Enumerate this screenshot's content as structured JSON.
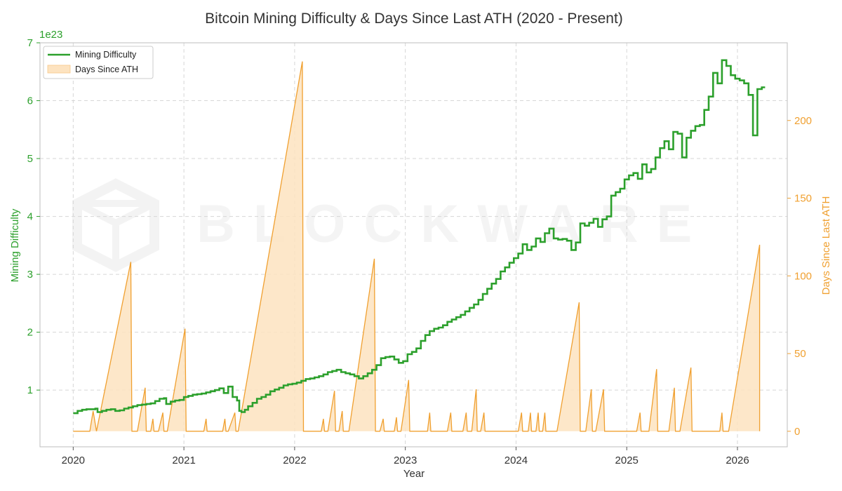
{
  "chart_data": {
    "type": "line",
    "title": "Bitcoin Mining Difficulty & Days Since Last ATH (2020 - Present)",
    "xlabel": "Year",
    "ylabel_left": "Mining Difficulty",
    "ylabel_right": "Days Since Last ATH",
    "left_axis_offset": "1e23",
    "watermark": "BLOCKWARE",
    "xlim": [
      2019.7,
      2026.45
    ],
    "ylim_left": [
      0.02,
      7.0
    ],
    "ylim_right": [
      -10,
      250
    ],
    "x_ticks": [
      2020,
      2021,
      2022,
      2023,
      2024,
      2025,
      2026
    ],
    "y_left_ticks": [
      1,
      2,
      3,
      4,
      5,
      6,
      7
    ],
    "y_right_ticks": [
      0,
      50,
      100,
      150,
      200
    ],
    "grid": true,
    "legend_position": "top-left",
    "colors": {
      "difficulty": "#2ca02c",
      "ath_line": "#f0a030",
      "ath_fill": "#fde3c0",
      "left_axis": "#2ca02c",
      "right_axis": "#f0a030"
    },
    "series": [
      {
        "name": "Mining Difficulty",
        "style": "step",
        "points": [
          [
            2020.0,
            0.6
          ],
          [
            2020.04,
            0.64
          ],
          [
            2020.08,
            0.66
          ],
          [
            2020.12,
            0.67
          ],
          [
            2020.16,
            0.67
          ],
          [
            2020.2,
            0.68
          ],
          [
            2020.22,
            0.62
          ],
          [
            2020.26,
            0.64
          ],
          [
            2020.3,
            0.66
          ],
          [
            2020.34,
            0.67
          ],
          [
            2020.38,
            0.64
          ],
          [
            2020.42,
            0.65
          ],
          [
            2020.46,
            0.68
          ],
          [
            2020.5,
            0.7
          ],
          [
            2020.54,
            0.72
          ],
          [
            2020.58,
            0.74
          ],
          [
            2020.62,
            0.75
          ],
          [
            2020.66,
            0.76
          ],
          [
            2020.7,
            0.77
          ],
          [
            2020.74,
            0.81
          ],
          [
            2020.78,
            0.85
          ],
          [
            2020.82,
            0.86
          ],
          [
            2020.84,
            0.76
          ],
          [
            2020.88,
            0.8
          ],
          [
            2020.92,
            0.82
          ],
          [
            2020.96,
            0.83
          ],
          [
            2021.0,
            0.88
          ],
          [
            2021.04,
            0.9
          ],
          [
            2021.08,
            0.92
          ],
          [
            2021.12,
            0.93
          ],
          [
            2021.16,
            0.94
          ],
          [
            2021.2,
            0.96
          ],
          [
            2021.24,
            0.98
          ],
          [
            2021.28,
            1.0
          ],
          [
            2021.32,
            1.03
          ],
          [
            2021.36,
            0.95
          ],
          [
            2021.4,
            1.06
          ],
          [
            2021.44,
            0.88
          ],
          [
            2021.48,
            0.82
          ],
          [
            2021.5,
            0.64
          ],
          [
            2021.52,
            0.62
          ],
          [
            2021.55,
            0.66
          ],
          [
            2021.58,
            0.72
          ],
          [
            2021.62,
            0.78
          ],
          [
            2021.66,
            0.85
          ],
          [
            2021.7,
            0.88
          ],
          [
            2021.74,
            0.92
          ],
          [
            2021.78,
            0.98
          ],
          [
            2021.82,
            1.01
          ],
          [
            2021.86,
            1.04
          ],
          [
            2021.9,
            1.08
          ],
          [
            2021.94,
            1.1
          ],
          [
            2021.98,
            1.11
          ],
          [
            2022.02,
            1.13
          ],
          [
            2022.06,
            1.16
          ],
          [
            2022.1,
            1.19
          ],
          [
            2022.14,
            1.2
          ],
          [
            2022.18,
            1.22
          ],
          [
            2022.22,
            1.24
          ],
          [
            2022.26,
            1.27
          ],
          [
            2022.3,
            1.31
          ],
          [
            2022.34,
            1.33
          ],
          [
            2022.38,
            1.35
          ],
          [
            2022.42,
            1.31
          ],
          [
            2022.46,
            1.29
          ],
          [
            2022.5,
            1.27
          ],
          [
            2022.54,
            1.24
          ],
          [
            2022.58,
            1.2
          ],
          [
            2022.62,
            1.24
          ],
          [
            2022.66,
            1.29
          ],
          [
            2022.7,
            1.35
          ],
          [
            2022.74,
            1.43
          ],
          [
            2022.78,
            1.55
          ],
          [
            2022.82,
            1.57
          ],
          [
            2022.86,
            1.58
          ],
          [
            2022.9,
            1.53
          ],
          [
            2022.94,
            1.47
          ],
          [
            2022.98,
            1.5
          ],
          [
            2023.02,
            1.62
          ],
          [
            2023.06,
            1.66
          ],
          [
            2023.1,
            1.72
          ],
          [
            2023.14,
            1.85
          ],
          [
            2023.18,
            1.95
          ],
          [
            2023.22,
            2.02
          ],
          [
            2023.26,
            2.06
          ],
          [
            2023.3,
            2.08
          ],
          [
            2023.34,
            2.12
          ],
          [
            2023.38,
            2.18
          ],
          [
            2023.42,
            2.22
          ],
          [
            2023.46,
            2.26
          ],
          [
            2023.5,
            2.3
          ],
          [
            2023.54,
            2.36
          ],
          [
            2023.58,
            2.42
          ],
          [
            2023.62,
            2.48
          ],
          [
            2023.66,
            2.56
          ],
          [
            2023.7,
            2.66
          ],
          [
            2023.74,
            2.75
          ],
          [
            2023.78,
            2.84
          ],
          [
            2023.82,
            2.92
          ],
          [
            2023.86,
            3.05
          ],
          [
            2023.9,
            3.12
          ],
          [
            2023.94,
            3.2
          ],
          [
            2023.98,
            3.28
          ],
          [
            2024.02,
            3.36
          ],
          [
            2024.06,
            3.52
          ],
          [
            2024.1,
            3.42
          ],
          [
            2024.14,
            3.48
          ],
          [
            2024.18,
            3.62
          ],
          [
            2024.22,
            3.56
          ],
          [
            2024.26,
            3.71
          ],
          [
            2024.3,
            3.79
          ],
          [
            2024.34,
            3.62
          ],
          [
            2024.38,
            3.6
          ],
          [
            2024.42,
            3.61
          ],
          [
            2024.46,
            3.58
          ],
          [
            2024.5,
            3.42
          ],
          [
            2024.54,
            3.55
          ],
          [
            2024.58,
            3.88
          ],
          [
            2024.62,
            3.84
          ],
          [
            2024.66,
            3.89
          ],
          [
            2024.7,
            3.96
          ],
          [
            2024.74,
            3.82
          ],
          [
            2024.78,
            3.95
          ],
          [
            2024.82,
            4.0
          ],
          [
            2024.86,
            4.36
          ],
          [
            2024.9,
            4.42
          ],
          [
            2024.94,
            4.48
          ],
          [
            2024.98,
            4.64
          ],
          [
            2025.02,
            4.71
          ],
          [
            2025.06,
            4.75
          ],
          [
            2025.1,
            4.65
          ],
          [
            2025.14,
            4.9
          ],
          [
            2025.18,
            4.76
          ],
          [
            2025.22,
            4.82
          ],
          [
            2025.26,
            5.02
          ],
          [
            2025.3,
            5.18
          ],
          [
            2025.34,
            5.3
          ],
          [
            2025.38,
            5.16
          ],
          [
            2025.42,
            5.46
          ],
          [
            2025.46,
            5.43
          ],
          [
            2025.5,
            5.02
          ],
          [
            2025.54,
            5.36
          ],
          [
            2025.58,
            5.48
          ],
          [
            2025.62,
            5.56
          ],
          [
            2025.66,
            5.58
          ],
          [
            2025.7,
            5.84
          ],
          [
            2025.74,
            6.07
          ],
          [
            2025.78,
            6.48
          ],
          [
            2025.82,
            6.3
          ],
          [
            2025.86,
            6.7
          ],
          [
            2025.9,
            6.6
          ],
          [
            2025.94,
            6.44
          ],
          [
            2025.98,
            6.38
          ],
          [
            2026.02,
            6.35
          ],
          [
            2026.06,
            6.3
          ],
          [
            2026.1,
            6.1
          ],
          [
            2026.14,
            5.4
          ],
          [
            2026.18,
            6.2
          ],
          [
            2026.22,
            6.23
          ],
          [
            2026.25,
            6.23
          ]
        ]
      },
      {
        "name": "Days Since ATH",
        "style": "filled-area",
        "points": [
          [
            2020.0,
            0
          ],
          [
            2020.15,
            0
          ],
          [
            2020.18,
            13
          ],
          [
            2020.21,
            0
          ],
          [
            2020.52,
            109
          ],
          [
            2020.53,
            0
          ],
          [
            2020.58,
            0
          ],
          [
            2020.65,
            28
          ],
          [
            2020.66,
            0
          ],
          [
            2020.7,
            0
          ],
          [
            2020.72,
            8
          ],
          [
            2020.73,
            0
          ],
          [
            2020.77,
            0
          ],
          [
            2020.81,
            12
          ],
          [
            2020.82,
            0
          ],
          [
            2020.85,
            0
          ],
          [
            2021.01,
            66
          ],
          [
            2021.02,
            0
          ],
          [
            2021.18,
            0
          ],
          [
            2021.2,
            8
          ],
          [
            2021.21,
            0
          ],
          [
            2021.35,
            0
          ],
          [
            2021.37,
            8
          ],
          [
            2021.38,
            0
          ],
          [
            2021.4,
            0
          ],
          [
            2021.46,
            12
          ],
          [
            2021.47,
            0
          ],
          [
            2021.49,
            0
          ],
          [
            2022.07,
            238
          ],
          [
            2022.08,
            0
          ],
          [
            2022.24,
            0
          ],
          [
            2022.26,
            8
          ],
          [
            2022.27,
            0
          ],
          [
            2022.3,
            0
          ],
          [
            2022.36,
            26
          ],
          [
            2022.37,
            0
          ],
          [
            2022.4,
            0
          ],
          [
            2022.43,
            13
          ],
          [
            2022.44,
            0
          ],
          [
            2022.49,
            0
          ],
          [
            2022.72,
            111
          ],
          [
            2022.73,
            0
          ],
          [
            2022.77,
            0
          ],
          [
            2022.8,
            8
          ],
          [
            2022.81,
            0
          ],
          [
            2022.9,
            0
          ],
          [
            2022.92,
            9
          ],
          [
            2022.93,
            0
          ],
          [
            2022.96,
            0
          ],
          [
            2023.03,
            33
          ],
          [
            2023.04,
            0
          ],
          [
            2023.2,
            0
          ],
          [
            2023.22,
            12
          ],
          [
            2023.23,
            0
          ],
          [
            2023.38,
            0
          ],
          [
            2023.41,
            12
          ],
          [
            2023.42,
            0
          ],
          [
            2023.52,
            0
          ],
          [
            2023.55,
            12
          ],
          [
            2023.56,
            0
          ],
          [
            2023.6,
            0
          ],
          [
            2023.64,
            27
          ],
          [
            2023.65,
            0
          ],
          [
            2023.68,
            0
          ],
          [
            2023.71,
            12
          ],
          [
            2023.72,
            0
          ],
          [
            2024.02,
            0
          ],
          [
            2024.05,
            12
          ],
          [
            2024.06,
            0
          ],
          [
            2024.11,
            0
          ],
          [
            2024.13,
            12
          ],
          [
            2024.14,
            0
          ],
          [
            2024.18,
            0
          ],
          [
            2024.2,
            12
          ],
          [
            2024.21,
            0
          ],
          [
            2024.24,
            0
          ],
          [
            2024.26,
            12
          ],
          [
            2024.27,
            0
          ],
          [
            2024.37,
            0
          ],
          [
            2024.57,
            83
          ],
          [
            2024.58,
            0
          ],
          [
            2024.63,
            0
          ],
          [
            2024.68,
            27
          ],
          [
            2024.69,
            0
          ],
          [
            2024.72,
            0
          ],
          [
            2024.79,
            27
          ],
          [
            2024.8,
            0
          ],
          [
            2025.09,
            0
          ],
          [
            2025.12,
            12
          ],
          [
            2025.13,
            0
          ],
          [
            2025.2,
            0
          ],
          [
            2025.27,
            40
          ],
          [
            2025.28,
            0
          ],
          [
            2025.38,
            0
          ],
          [
            2025.43,
            28
          ],
          [
            2025.44,
            0
          ],
          [
            2025.48,
            0
          ],
          [
            2025.58,
            41
          ],
          [
            2025.59,
            0
          ],
          [
            2025.84,
            0
          ],
          [
            2025.86,
            12
          ],
          [
            2025.87,
            0
          ],
          [
            2025.92,
            0
          ],
          [
            2026.2,
            120
          ],
          [
            2026.2,
            0
          ]
        ]
      }
    ]
  }
}
